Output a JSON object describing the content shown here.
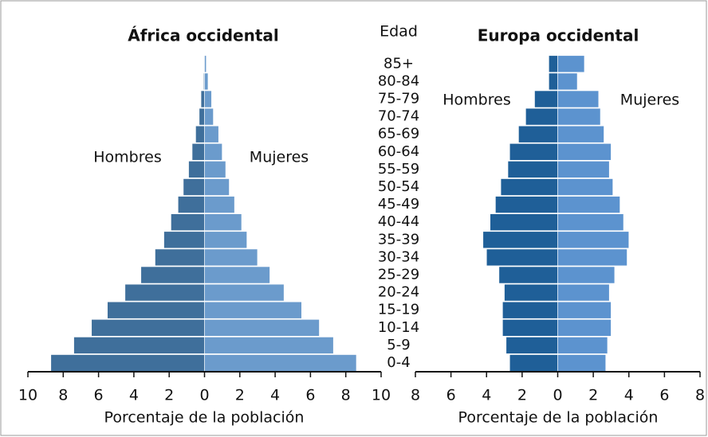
{
  "chart_data": [
    {
      "type": "pyramid",
      "title": "África occidental",
      "ylabel": "Edad",
      "xlabel": "Porcentaje de la población",
      "categories": [
        "0-4",
        "5-9",
        "10-14",
        "15-19",
        "20-24",
        "25-29",
        "30-34",
        "35-39",
        "40-44",
        "45-49",
        "50-54",
        "55-59",
        "60-64",
        "65-69",
        "70-74",
        "75-79",
        "80-84",
        "85+"
      ],
      "series": [
        {
          "name": "Hombres",
          "color": "#3f6f9b",
          "values": [
            8.7,
            7.4,
            6.4,
            5.5,
            4.5,
            3.6,
            2.8,
            2.3,
            1.9,
            1.5,
            1.2,
            0.9,
            0.7,
            0.5,
            0.3,
            0.2,
            0.05,
            0.0
          ]
        },
        {
          "name": "Mujeres",
          "color": "#6b9bcc",
          "values": [
            8.6,
            7.3,
            6.5,
            5.5,
            4.5,
            3.7,
            3.0,
            2.4,
            2.1,
            1.7,
            1.4,
            1.2,
            1.0,
            0.8,
            0.5,
            0.4,
            0.2,
            0.1
          ]
        }
      ],
      "xlim": [
        -10,
        10
      ],
      "xticks": [
        {
          "value": -10,
          "label": "10"
        },
        {
          "value": -8,
          "label": "8"
        },
        {
          "value": -6,
          "label": "6"
        },
        {
          "value": -4,
          "label": "4"
        },
        {
          "value": -2,
          "label": "2"
        },
        0,
        2,
        4,
        6,
        8,
        10
      ]
    },
    {
      "type": "pyramid",
      "title": "Europa occidental",
      "xlabel": "Porcentaje de la población",
      "series": [
        {
          "name": "Hombres",
          "color": "#1f5f98",
          "values": [
            2.7,
            2.9,
            3.1,
            3.1,
            3.0,
            3.3,
            4.0,
            4.2,
            3.8,
            3.5,
            3.2,
            2.8,
            2.7,
            2.2,
            1.8,
            1.3,
            0.5,
            0.5
          ]
        },
        {
          "name": "Mujeres",
          "color": "#5c93cf",
          "values": [
            2.7,
            2.8,
            3.0,
            3.0,
            2.9,
            3.2,
            3.9,
            4.0,
            3.7,
            3.5,
            3.1,
            2.9,
            3.0,
            2.6,
            2.4,
            2.3,
            1.1,
            1.5
          ]
        }
      ],
      "xlim": [
        -8,
        8
      ],
      "xticks": [
        {
          "value": -8,
          "label": "8"
        },
        {
          "value": -6,
          "label": "6"
        },
        {
          "value": -4,
          "label": "4"
        },
        {
          "value": -2,
          "label": "2"
        },
        0,
        2,
        4,
        6,
        8
      ]
    }
  ]
}
